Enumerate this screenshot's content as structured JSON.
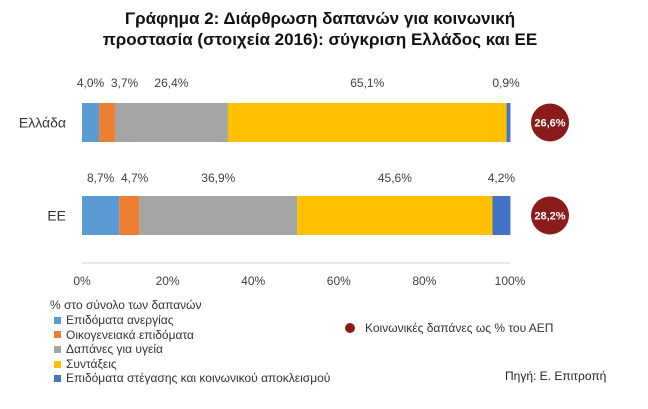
{
  "chart_data": {
    "type": "bar",
    "orientation": "horizontal",
    "stacked": true,
    "title_line1": "Γράφημα 2: Διάρθρωση δαπανών για κοινωνική",
    "title_line2": "προστασία (στοιχεία 2016): σύγκριση Ελλάδος και ΕΕ",
    "categories": [
      "Ελλάδα",
      "ΕΕ"
    ],
    "xlim": [
      0,
      100
    ],
    "xticks": [
      "0%",
      "20%",
      "40%",
      "60%",
      "80%",
      "100%"
    ],
    "xlabel": "% στο σύνολο των δαπανών",
    "legend_position": "bottom-left",
    "grid": false,
    "series": [
      {
        "name": "Επιδόματα ανεργίας",
        "color": "#5b9bd5",
        "values": [
          4.0,
          8.7
        ],
        "labels": [
          "4,0%",
          "8,7%"
        ]
      },
      {
        "name": "Οικογενειακά επιδόματα",
        "color": "#ed7d31",
        "values": [
          3.7,
          4.7
        ],
        "labels": [
          "3,7%",
          "4,7%"
        ]
      },
      {
        "name": "Δαπάνες για υγεία",
        "color": "#a5a5a5",
        "values": [
          26.4,
          36.9
        ],
        "labels": [
          "26,4%",
          "36,9%"
        ]
      },
      {
        "name": "Συντάξεις",
        "color": "#ffc000",
        "values": [
          65.1,
          45.6
        ],
        "labels": [
          "65,1%",
          "45,6%"
        ]
      },
      {
        "name": "Επιδόματα στέγασης και κοινωνικού αποκλεισμού",
        "color": "#4472c4",
        "values": [
          0.9,
          4.2
        ],
        "labels": [
          "0,9%",
          "4,2%"
        ]
      }
    ],
    "gdp_series": {
      "name": "Κοινωνικές δαπάνες ως % του ΑΕΠ",
      "color": "#8b1a1a",
      "values": [
        26.6,
        28.2
      ],
      "labels": [
        "26,6%",
        "28,2%"
      ]
    }
  },
  "source": "Πηγή: Ε. Επιτροπή"
}
